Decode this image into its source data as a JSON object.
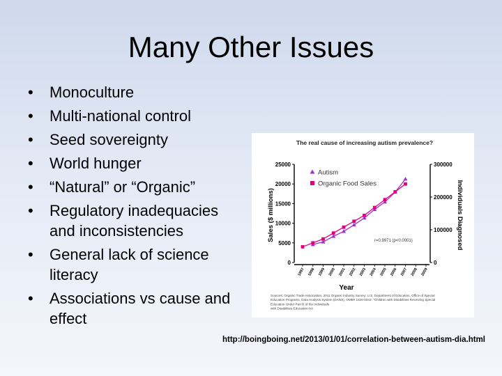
{
  "slide": {
    "title": "Many Other Issues",
    "bullets": [
      "Monoculture",
      "Multi-national control",
      "Seed sovereignty",
      "World hunger",
      "“Natural” or “Organic”",
      "Regulatory inadequacies and inconsistencies",
      "General lack of science literacy",
      "Associations vs cause and effect"
    ],
    "bullet_glyph": "•",
    "source_url": "http://boingboing.net/2013/01/01/correlation-between-autism-dia.html"
  },
  "chart_data": {
    "type": "line",
    "title": "The real cause of increasing autism prevalence?",
    "xlabel": "Year",
    "ylabel": "Sales ($ millions)",
    "y2label": "Individuals Diagnosed",
    "x": [
      1997,
      1998,
      1999,
      2000,
      2001,
      2002,
      2003,
      2004,
      2005,
      2006,
      2007,
      2008,
      2009
    ],
    "ylim": [
      0,
      25000
    ],
    "yticks": [
      0,
      5000,
      10000,
      15000,
      20000,
      25000
    ],
    "y2lim": [
      0,
      300000
    ],
    "y2ticks": [
      0,
      100000,
      200000,
      300000
    ],
    "series": [
      {
        "name": "Autism",
        "axis": "right",
        "color": "#9a33cc",
        "marker": "triangle",
        "x": [
          1998,
          1999,
          2000,
          2001,
          2002,
          2003,
          2004,
          2005,
          2006,
          2007
        ],
        "values": [
          55000,
          63000,
          80000,
          95000,
          115000,
          136000,
          162000,
          185000,
          215000,
          255000
        ]
      },
      {
        "name": "Organic Food Sales",
        "axis": "left",
        "color": "#e3007e",
        "marker": "square",
        "x": [
          1997,
          1998,
          1999,
          2000,
          2001,
          2002,
          2003,
          2004,
          2005,
          2006,
          2007
        ],
        "values": [
          4000,
          5000,
          6000,
          7500,
          9000,
          10500,
          12000,
          14000,
          16000,
          18000,
          20000
        ]
      }
    ],
    "annotation": "r=0.9971 (p<0.0001)",
    "sources": [
      "Sources: Organic Trade Association, 2011 Organic Industry Survey; U.S. Department of Education, Office of Special",
      "Education Programs, Data Analysis System (DANS), OMB# 1820-0043: \"Children with Disabilities Receiving Special",
      "Education Under Part B of the Individuals",
      "with Disabilities Education Act"
    ],
    "legend": "top-left",
    "grid": false
  }
}
